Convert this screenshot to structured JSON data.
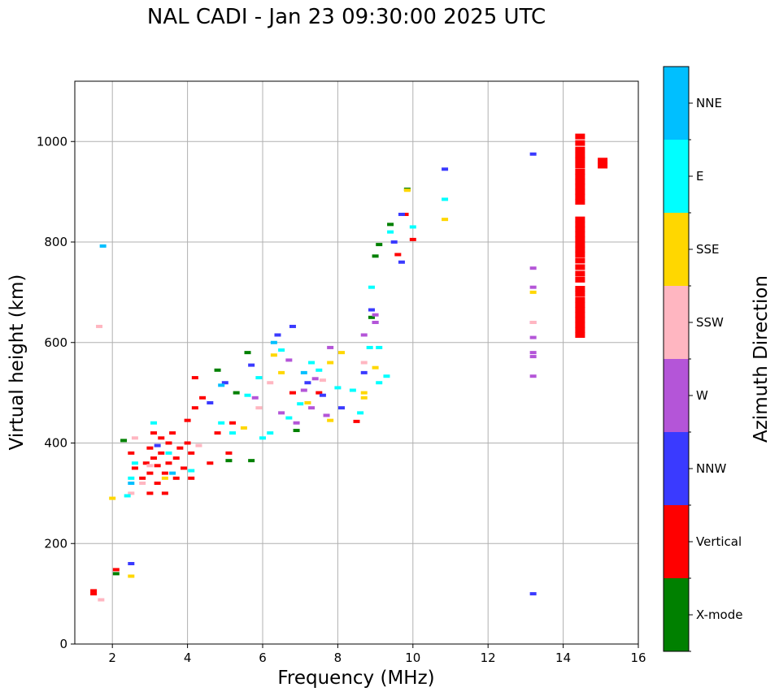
{
  "chart_data": {
    "type": "scatter",
    "title": "NAL CADI - Jan 23 09:30:00 2025 UTC",
    "xlabel": "Frequency (MHz)",
    "ylabel": "Virtual height (km)",
    "xlim": [
      1,
      16
    ],
    "ylim": [
      0,
      1120
    ],
    "xticks": [
      2,
      4,
      6,
      8,
      10,
      12,
      14,
      16
    ],
    "yticks": [
      0,
      200,
      400,
      600,
      800,
      1000
    ],
    "grid": true,
    "colorbar": {
      "label": "Azimuth Direction",
      "categories": [
        {
          "name": "X-mode",
          "color": "#008000"
        },
        {
          "name": "Vertical",
          "color": "#ff0000"
        },
        {
          "name": "NNW",
          "color": "#3a3aff"
        },
        {
          "name": "W",
          "color": "#b455d8"
        },
        {
          "name": "SSW",
          "color": "#ffb6c1"
        },
        {
          "name": "SSE",
          "color": "#ffd700"
        },
        {
          "name": "E",
          "color": "#00ffff"
        },
        {
          "name": "NNE",
          "color": "#00bfff"
        }
      ]
    },
    "series": [
      {
        "name": "Vertical",
        "points": [
          [
            1.5,
            100
          ],
          [
            1.5,
            106
          ],
          [
            2.1,
            148
          ],
          [
            2.5,
            380
          ],
          [
            2.6,
            350
          ],
          [
            2.8,
            330
          ],
          [
            2.9,
            360
          ],
          [
            3.0,
            300
          ],
          [
            3.0,
            340
          ],
          [
            3.0,
            390
          ],
          [
            3.1,
            420
          ],
          [
            3.1,
            370
          ],
          [
            3.2,
            355
          ],
          [
            3.2,
            320
          ],
          [
            3.3,
            410
          ],
          [
            3.3,
            380
          ],
          [
            3.4,
            340
          ],
          [
            3.4,
            300
          ],
          [
            3.5,
            400
          ],
          [
            3.5,
            360
          ],
          [
            3.6,
            420
          ],
          [
            3.7,
            370
          ],
          [
            3.7,
            330
          ],
          [
            3.8,
            390
          ],
          [
            3.9,
            350
          ],
          [
            4.0,
            445
          ],
          [
            4.0,
            400
          ],
          [
            4.1,
            330
          ],
          [
            4.1,
            380
          ],
          [
            4.2,
            470
          ],
          [
            4.2,
            530
          ],
          [
            4.4,
            490
          ],
          [
            4.6,
            360
          ],
          [
            4.8,
            420
          ],
          [
            5.1,
            380
          ],
          [
            5.2,
            440
          ],
          [
            6.8,
            500
          ],
          [
            7.5,
            500
          ],
          [
            8.5,
            443
          ],
          [
            9.8,
            855
          ],
          [
            10.0,
            805
          ],
          [
            9.6,
            775
          ],
          [
            14.45,
            1010
          ],
          [
            14.45,
            997
          ],
          [
            14.45,
            984
          ],
          [
            14.45,
            973
          ],
          [
            14.45,
            963
          ],
          [
            14.45,
            952
          ],
          [
            14.45,
            940
          ],
          [
            14.45,
            930
          ],
          [
            14.45,
            920
          ],
          [
            14.45,
            910
          ],
          [
            14.45,
            900
          ],
          [
            14.45,
            890
          ],
          [
            14.45,
            880
          ],
          [
            14.45,
            845
          ],
          [
            14.45,
            835
          ],
          [
            14.45,
            825
          ],
          [
            14.45,
            815
          ],
          [
            14.45,
            805
          ],
          [
            14.45,
            795
          ],
          [
            14.45,
            785
          ],
          [
            14.45,
            775
          ],
          [
            14.45,
            763
          ],
          [
            14.45,
            750
          ],
          [
            14.45,
            737
          ],
          [
            14.45,
            725
          ],
          [
            14.45,
            707
          ],
          [
            14.45,
            697
          ],
          [
            14.45,
            685
          ],
          [
            14.45,
            675
          ],
          [
            14.45,
            665
          ],
          [
            14.45,
            655
          ],
          [
            14.45,
            645
          ],
          [
            14.45,
            635
          ],
          [
            14.45,
            625
          ],
          [
            14.45,
            615
          ],
          [
            15.05,
            962
          ],
          [
            15.05,
            952
          ]
        ]
      },
      {
        "name": "X-mode",
        "points": [
          [
            2.1,
            140
          ],
          [
            2.3,
            405
          ],
          [
            4.8,
            545
          ],
          [
            5.1,
            365
          ],
          [
            5.3,
            500
          ],
          [
            5.6,
            580
          ],
          [
            5.7,
            365
          ],
          [
            9.0,
            772
          ],
          [
            9.1,
            795
          ],
          [
            9.4,
            835
          ],
          [
            9.85,
            905
          ],
          [
            8.9,
            650
          ],
          [
            6.9,
            425
          ]
        ]
      },
      {
        "name": "NNW",
        "points": [
          [
            2.5,
            160
          ],
          [
            3.2,
            395
          ],
          [
            4.6,
            480
          ],
          [
            5.0,
            520
          ],
          [
            5.7,
            555
          ],
          [
            6.4,
            615
          ],
          [
            6.8,
            632
          ],
          [
            7.2,
            520
          ],
          [
            7.6,
            495
          ],
          [
            8.1,
            470
          ],
          [
            8.9,
            665
          ],
          [
            9.0,
            640
          ],
          [
            9.7,
            760
          ],
          [
            9.7,
            855
          ],
          [
            9.5,
            800
          ],
          [
            10.85,
            945
          ],
          [
            13.2,
            975
          ],
          [
            13.2,
            100
          ],
          [
            8.7,
            540
          ]
        ]
      },
      {
        "name": "W",
        "points": [
          [
            5.8,
            490
          ],
          [
            6.5,
            460
          ],
          [
            6.9,
            440
          ],
          [
            7.1,
            505
          ],
          [
            7.3,
            470
          ],
          [
            7.8,
            590
          ],
          [
            8.7,
            615
          ],
          [
            9.0,
            640
          ],
          [
            9.0,
            655
          ],
          [
            13.2,
            748
          ],
          [
            13.2,
            710
          ],
          [
            13.2,
            640
          ],
          [
            13.2,
            610
          ],
          [
            13.2,
            580
          ],
          [
            13.2,
            572
          ],
          [
            13.2,
            533
          ],
          [
            6.7,
            565
          ],
          [
            7.4,
            528
          ],
          [
            7.7,
            455
          ]
        ]
      },
      {
        "name": "SSW",
        "points": [
          [
            1.65,
            632
          ],
          [
            1.7,
            88
          ],
          [
            2.5,
            300
          ],
          [
            2.6,
            410
          ],
          [
            2.8,
            320
          ],
          [
            3.0,
            355
          ],
          [
            4.3,
            395
          ],
          [
            5.9,
            470
          ],
          [
            6.2,
            520
          ],
          [
            7.6,
            525
          ],
          [
            8.7,
            560
          ],
          [
            13.2,
            640
          ]
        ]
      },
      {
        "name": "SSE",
        "points": [
          [
            2.0,
            290
          ],
          [
            2.5,
            135
          ],
          [
            3.4,
            330
          ],
          [
            5.5,
            430
          ],
          [
            6.3,
            575
          ],
          [
            6.5,
            540
          ],
          [
            7.2,
            480
          ],
          [
            7.8,
            445
          ],
          [
            7.8,
            560
          ],
          [
            8.1,
            580
          ],
          [
            8.7,
            500
          ],
          [
            8.7,
            490
          ],
          [
            9.0,
            550
          ],
          [
            9.85,
            903
          ],
          [
            10.85,
            845
          ],
          [
            13.2,
            700
          ]
        ]
      },
      {
        "name": "E",
        "points": [
          [
            2.4,
            295
          ],
          [
            2.5,
            330
          ],
          [
            2.6,
            360
          ],
          [
            3.1,
            440
          ],
          [
            3.5,
            380
          ],
          [
            4.1,
            345
          ],
          [
            4.9,
            440
          ],
          [
            5.2,
            420
          ],
          [
            5.6,
            495
          ],
          [
            5.9,
            530
          ],
          [
            6.0,
            410
          ],
          [
            6.5,
            585
          ],
          [
            6.7,
            450
          ],
          [
            7.0,
            478
          ],
          [
            7.5,
            545
          ],
          [
            8.0,
            510
          ],
          [
            8.4,
            505
          ],
          [
            8.6,
            460
          ],
          [
            8.85,
            590
          ],
          [
            9.1,
            590
          ],
          [
            9.1,
            520
          ],
          [
            9.3,
            533
          ],
          [
            9.4,
            820
          ],
          [
            10.0,
            830
          ],
          [
            10.85,
            885
          ],
          [
            8.9,
            710
          ],
          [
            7.3,
            560
          ],
          [
            6.2,
            420
          ]
        ]
      },
      {
        "name": "NNE",
        "points": [
          [
            1.75,
            792
          ],
          [
            2.5,
            320
          ],
          [
            3.6,
            340
          ],
          [
            4.9,
            515
          ],
          [
            6.3,
            600
          ],
          [
            7.1,
            540
          ]
        ]
      }
    ]
  }
}
